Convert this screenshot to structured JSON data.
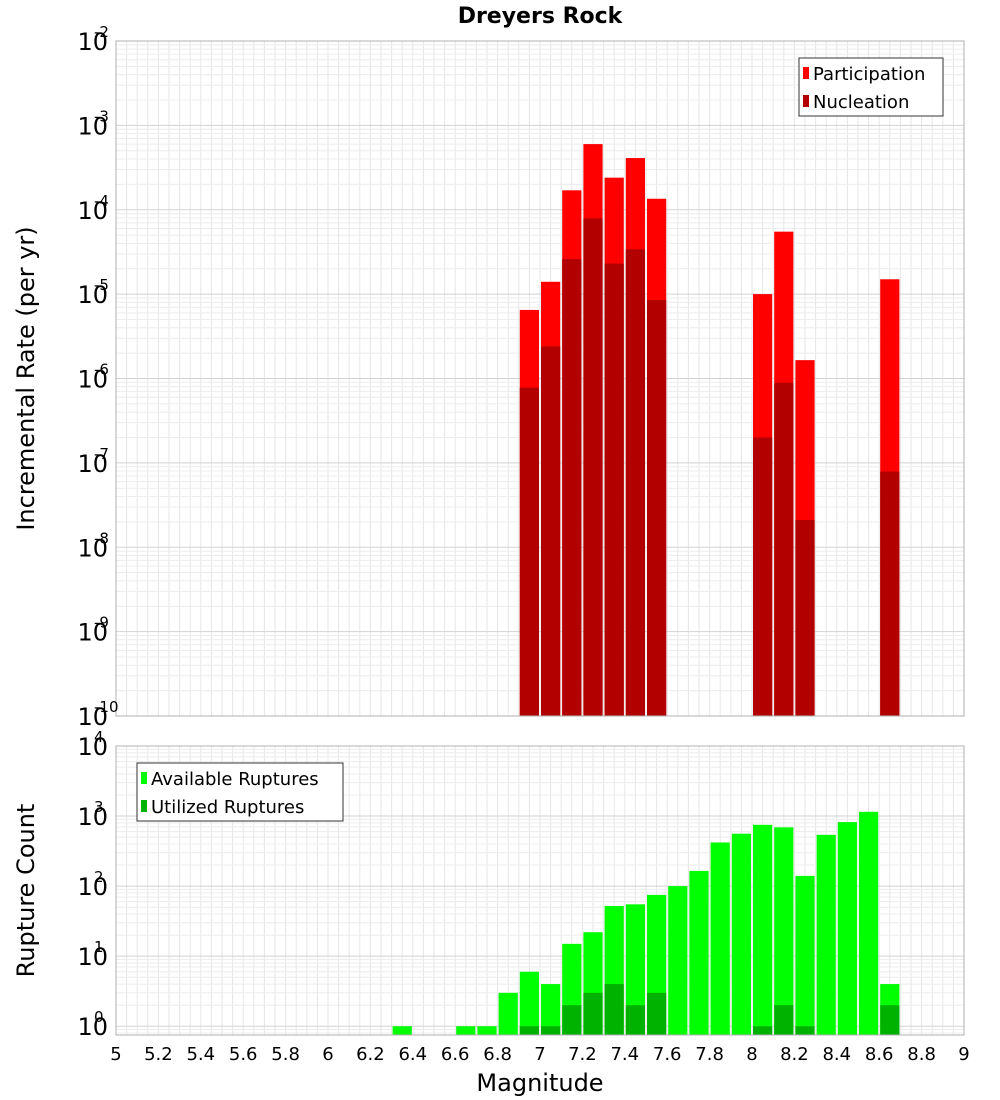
{
  "chart_data": [
    {
      "type": "bar",
      "title": "Dreyers Rock",
      "xlabel": "",
      "ylabel": "Incremental Rate (per yr)",
      "xlim": [
        5,
        9
      ],
      "ylim": [
        1e-10,
        0.01
      ],
      "yscale": "log",
      "grid": true,
      "legend_position": "top-right",
      "bin_width": 0.1,
      "y_ticks": [
        {
          "base": "10",
          "exp": "-10",
          "value": 1e-10
        },
        {
          "base": "10",
          "exp": "-9",
          "value": 1e-09
        },
        {
          "base": "10",
          "exp": "-8",
          "value": 1e-08
        },
        {
          "base": "10",
          "exp": "-7",
          "value": 1e-07
        },
        {
          "base": "10",
          "exp": "-6",
          "value": 1e-06
        },
        {
          "base": "10",
          "exp": "-5",
          "value": 1e-05
        },
        {
          "base": "10",
          "exp": "-4",
          "value": 0.0001
        },
        {
          "base": "10",
          "exp": "-3",
          "value": 0.001
        },
        {
          "base": "10",
          "exp": "-2",
          "value": 0.01
        }
      ],
      "series": [
        {
          "name": "Participation",
          "color": "#ff0000",
          "x": [
            6.95,
            7.05,
            7.15,
            7.25,
            7.35,
            7.45,
            7.55,
            8.05,
            8.15,
            8.25,
            8.65
          ],
          "values": [
            6.5e-06,
            1.4e-05,
            0.00017,
            0.0006,
            0.00024,
            0.00041,
            0.000135,
            1e-05,
            5.5e-05,
            1.65e-06,
            1.5e-05
          ]
        },
        {
          "name": "Nucleation",
          "color": "#b20000",
          "x": [
            6.95,
            7.05,
            7.15,
            7.25,
            7.35,
            7.45,
            7.55,
            8.05,
            8.15,
            8.25,
            8.65
          ],
          "values": [
            7.8e-07,
            2.4e-06,
            2.6e-05,
            7.9e-05,
            2.3e-05,
            3.4e-05,
            8.5e-06,
            2e-07,
            8.9e-07,
            2.1e-08,
            7.9e-08
          ]
        }
      ]
    },
    {
      "type": "bar",
      "title": "",
      "xlabel": "Magnitude",
      "ylabel": "Rupture Count",
      "xlim": [
        5,
        9
      ],
      "ylim": [
        0.75,
        10000
      ],
      "yscale": "log",
      "grid": true,
      "legend_position": "top-left",
      "bin_width": 0.1,
      "x_ticks": [
        "5",
        "5.2",
        "5.4",
        "5.6",
        "5.8",
        "6",
        "6.2",
        "6.4",
        "6.6",
        "6.8",
        "7",
        "7.2",
        "7.4",
        "7.6",
        "7.8",
        "8",
        "8.2",
        "8.4",
        "8.6",
        "8.8",
        "9"
      ],
      "y_ticks": [
        {
          "base": "10",
          "exp": "0",
          "value": 1
        },
        {
          "base": "10",
          "exp": "1",
          "value": 10
        },
        {
          "base": "10",
          "exp": "2",
          "value": 100
        },
        {
          "base": "10",
          "exp": "3",
          "value": 1000
        },
        {
          "base": "10",
          "exp": "4",
          "value": 10000
        }
      ],
      "series": [
        {
          "name": "Available Ruptures",
          "color": "#00ff00",
          "x": [
            6.35,
            6.65,
            6.75,
            6.85,
            6.95,
            7.05,
            7.15,
            7.25,
            7.35,
            7.45,
            7.55,
            7.65,
            7.75,
            7.85,
            7.95,
            8.05,
            8.15,
            8.25,
            8.35,
            8.45,
            8.55,
            8.65
          ],
          "values": [
            1,
            1,
            1,
            3,
            6,
            4,
            15,
            22,
            52,
            55,
            75,
            100,
            165,
            420,
            560,
            750,
            690,
            140,
            540,
            820,
            1150,
            4
          ]
        },
        {
          "name": "Utilized Ruptures",
          "color": "#00b200",
          "x": [
            6.95,
            7.05,
            7.15,
            7.25,
            7.35,
            7.45,
            7.55,
            8.05,
            8.15,
            8.25,
            8.65
          ],
          "values": [
            1,
            1,
            2,
            3,
            4,
            2,
            3,
            1,
            2,
            1,
            2
          ]
        }
      ]
    }
  ]
}
